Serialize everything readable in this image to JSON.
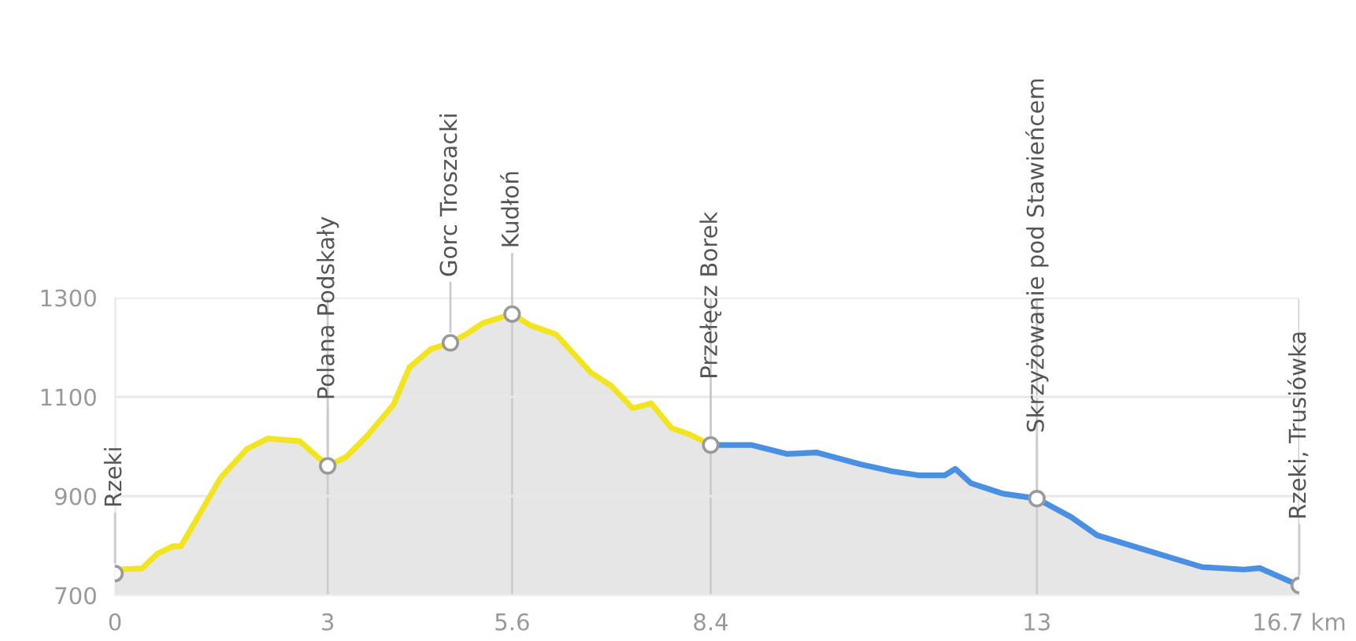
{
  "chart_data": {
    "type": "area",
    "series": [
      {
        "color": "#f2e520",
        "x": [
          0,
          0.38,
          0.6,
          0.82,
          0.93,
          1.19,
          1.49,
          1.86,
          2.15,
          2.6,
          3,
          3.26,
          3.56,
          3.93,
          4.15,
          4.45,
          4.73,
          4.97,
          5.19,
          5.6,
          5.86,
          6.22,
          6.71,
          7.0,
          7.3,
          7.56,
          7.85,
          8.11,
          8.4
        ],
        "values": [
          752,
          754,
          784,
          799,
          799,
          863,
          937,
          995,
          1016,
          1011,
          961,
          979,
          1022,
          1085,
          1159,
          1196,
          1209,
          1228,
          1249,
          1267,
          1244,
          1226,
          1149,
          1122,
          1077,
          1087,
          1037,
          1024,
          1003
        ]
      },
      {
        "color": "#4a90e2",
        "x": [
          8.4,
          8.97,
          9.48,
          9.89,
          10.52,
          10.96,
          11.33,
          11.7,
          11.85,
          12.07,
          12.52,
          13,
          13.48,
          13.85,
          14.59,
          15.33,
          15.92,
          16.14,
          16.7
        ],
        "values": [
          1003,
          1003,
          985,
          988,
          964,
          950,
          942,
          942,
          955,
          926,
          905,
          895,
          858,
          821,
          789,
          757,
          752,
          755,
          720
        ]
      },
      {
        "type": "scatter",
        "color": "#9a9a9a",
        "marker": "circle",
        "x": [
          0,
          3,
          4.73,
          5.6,
          8.4,
          13,
          16.7
        ],
        "values": [
          744,
          961,
          1209,
          1267,
          1003,
          895,
          720
        ]
      }
    ],
    "annotations": [
      {
        "text": "Rzeki",
        "x": 0,
        "y": 744
      },
      {
        "text": "Polana Podskały",
        "x": 3,
        "y": 961
      },
      {
        "text": "Gorc Troszacki",
        "x": 4.73,
        "y": 1209
      },
      {
        "text": "Kudłoń",
        "x": 5.6,
        "y": 1267
      },
      {
        "text": "Przełęcz Borek",
        "x": 8.4,
        "y": 1003
      },
      {
        "text": "Skrzyżowanie pod Stawieńcem",
        "x": 13,
        "y": 895
      },
      {
        "text": "Rzeki, Trusiówka",
        "x": 16.7,
        "y": 720
      }
    ],
    "xlim": [
      0,
      16.7
    ],
    "ylim": [
      700,
      1300
    ],
    "xticks": [
      0,
      3,
      5.6,
      8.4,
      13,
      {
        "value": 16.7,
        "label": "16.7 km"
      }
    ],
    "yticks": [
      700,
      900,
      1100,
      1300
    ],
    "grid": true,
    "legend": false,
    "marker": "none",
    "line_style": "solid"
  }
}
